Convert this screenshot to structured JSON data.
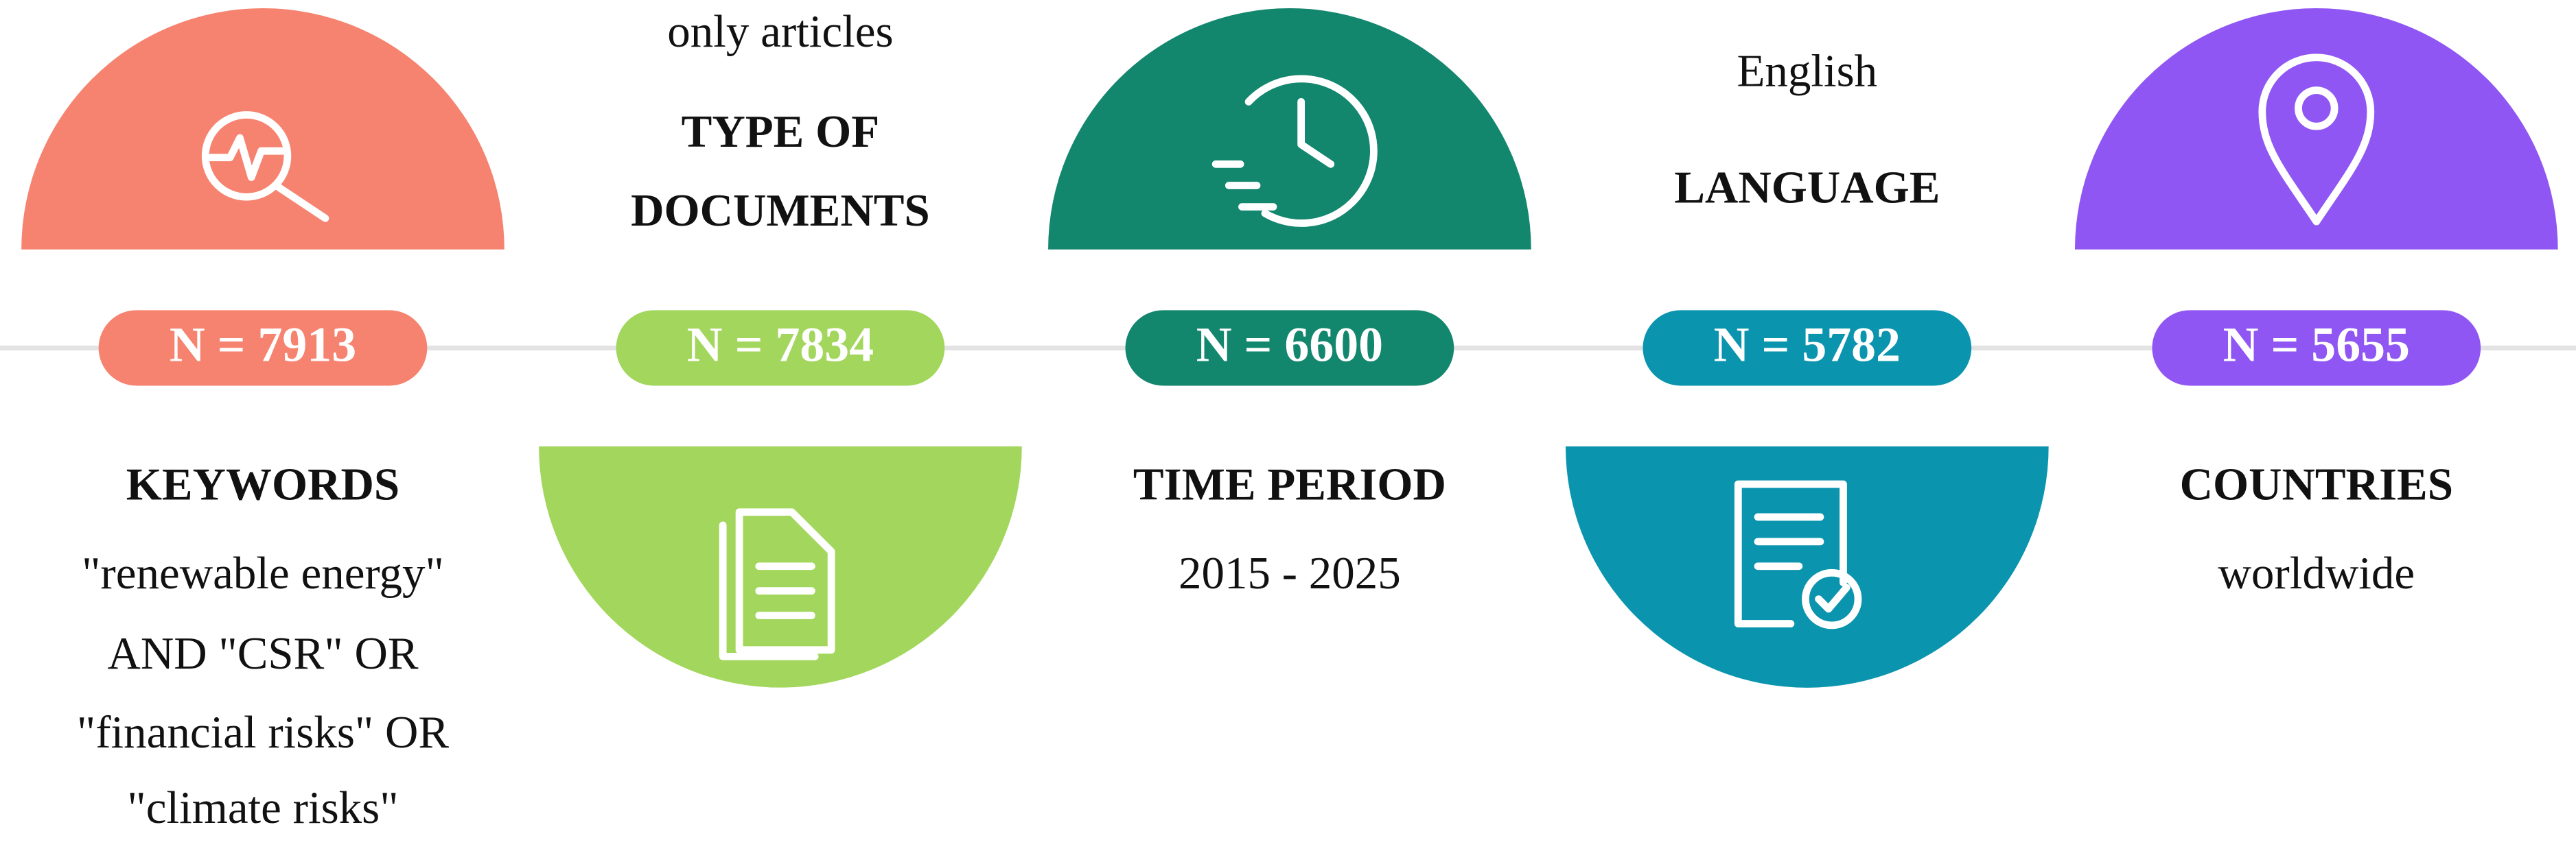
{
  "steps": [
    {
      "heading": [
        "KEYWORDS"
      ],
      "details": [
        "\"renewable energy\"",
        "AND \"CSR\" OR",
        "\"financial risks\" OR",
        "\"climate risks\""
      ],
      "count": "N = 7913"
    },
    {
      "heading": [
        "TYPE OF",
        "DOCUMENTS"
      ],
      "details": [
        "only articles"
      ],
      "count": "N = 7834"
    },
    {
      "heading": [
        "TIME PERIOD"
      ],
      "details": [
        "2015 - 2025"
      ],
      "count": "N = 6600"
    },
    {
      "heading": [
        "LANGUAGE"
      ],
      "details": [
        "English"
      ],
      "count": "N = 5782"
    },
    {
      "heading": [
        "COUNTRIES"
      ],
      "details": [
        "worldwide"
      ],
      "count": "N = 5655"
    }
  ]
}
